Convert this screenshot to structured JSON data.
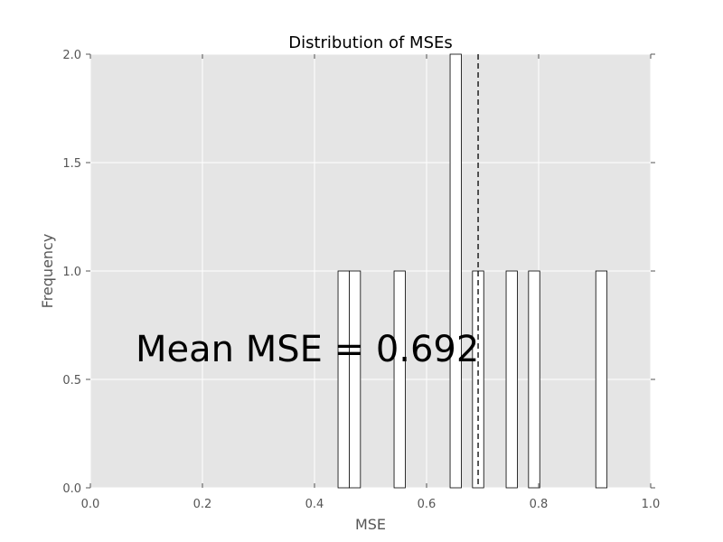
{
  "chart_data": {
    "type": "bar",
    "title": "Distribution of MSEs",
    "xlabel": "MSE",
    "ylabel": "Frequency",
    "xlim": [
      0.0,
      1.0
    ],
    "ylim": [
      0.0,
      2.0
    ],
    "xticks": [
      "0.0",
      "0.2",
      "0.4",
      "0.6",
      "0.8",
      "1.0"
    ],
    "yticks": [
      "0.0",
      "0.5",
      "1.0",
      "1.5",
      "2.0"
    ],
    "grid": true,
    "bins": [
      {
        "start": 0.442,
        "end": 0.462,
        "count": 1
      },
      {
        "start": 0.462,
        "end": 0.482,
        "count": 1
      },
      {
        "start": 0.542,
        "end": 0.562,
        "count": 1
      },
      {
        "start": 0.642,
        "end": 0.662,
        "count": 2
      },
      {
        "start": 0.682,
        "end": 0.702,
        "count": 1
      },
      {
        "start": 0.742,
        "end": 0.762,
        "count": 1
      },
      {
        "start": 0.782,
        "end": 0.802,
        "count": 1
      },
      {
        "start": 0.902,
        "end": 0.922,
        "count": 1
      }
    ],
    "mean_line": 0.692,
    "annotation": "Mean MSE = 0.692",
    "colors": {
      "plot_bg": "#e5e5e5",
      "grid": "#ffffff",
      "bar_fill": "#ffffff",
      "bar_edge": "#000000"
    }
  }
}
